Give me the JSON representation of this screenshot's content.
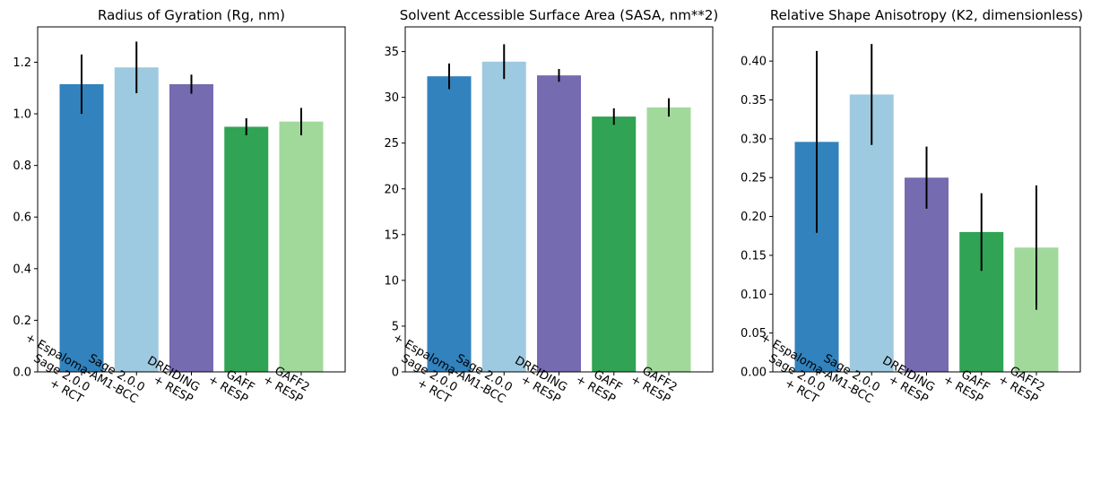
{
  "chart_data": [
    {
      "type": "bar",
      "title": "Radius of Gyration (Rg, nm)",
      "categories": [
        "Sage 2.0.0\n+ RCT",
        "Sage 2.0.0\n+ Espaloma-AM1-BCC",
        "DREIDING\n+ RESP",
        "GAFF\n+ RESP",
        "GAFF2\n+ RESP"
      ],
      "values": [
        1.115,
        1.18,
        1.115,
        0.95,
        0.97
      ],
      "errors": [
        0.115,
        0.1,
        0.037,
        0.033,
        0.053
      ],
      "colors": [
        "#3182bd",
        "#9ecae1",
        "#756bb1",
        "#31a354",
        "#a1d99b"
      ],
      "ylim": [
        0,
        1.337
      ],
      "yticks": [
        0.0,
        0.2,
        0.4,
        0.6,
        0.8,
        1.0,
        1.2
      ],
      "ytick_decimals": 1,
      "xlabel": "",
      "ylabel": "",
      "grid": false
    },
    {
      "type": "bar",
      "title": "Solvent Accessible Surface Area (SASA, nm**2)",
      "categories": [
        "Sage 2.0.0\n+ RCT",
        "Sage 2.0.0\n+ Espaloma-AM1-BCC",
        "DREIDING\n+ RESP",
        "GAFF\n+ RESP",
        "GAFF2\n+ RESP"
      ],
      "values": [
        32.3,
        33.9,
        32.4,
        27.9,
        28.9
      ],
      "errors": [
        1.4,
        1.9,
        0.7,
        0.9,
        1.0
      ],
      "colors": [
        "#3182bd",
        "#9ecae1",
        "#756bb1",
        "#31a354",
        "#a1d99b"
      ],
      "ylim": [
        0,
        37.7
      ],
      "yticks": [
        0,
        5,
        10,
        15,
        20,
        25,
        30,
        35
      ],
      "ytick_decimals": 0,
      "xlabel": "",
      "ylabel": "",
      "grid": false
    },
    {
      "type": "bar",
      "title": "Relative Shape Anisotropy (K2, dimensionless)",
      "categories": [
        "Sage 2.0.0\n+ RCT",
        "Sage 2.0.0\n+ Espaloma-AM1-BCC",
        "DREIDING\n+ RESP",
        "GAFF\n+ RESP",
        "GAFF2\n+ RESP"
      ],
      "values": [
        0.296,
        0.357,
        0.25,
        0.18,
        0.16
      ],
      "errors": [
        0.117,
        0.065,
        0.04,
        0.05,
        0.08
      ],
      "colors": [
        "#3182bd",
        "#9ecae1",
        "#756bb1",
        "#31a354",
        "#a1d99b"
      ],
      "ylim": [
        0,
        0.444
      ],
      "yticks": [
        0.0,
        0.05,
        0.1,
        0.15,
        0.2,
        0.25,
        0.3,
        0.35,
        0.4
      ],
      "ytick_decimals": 2,
      "xlabel": "",
      "ylabel": "",
      "grid": false
    }
  ]
}
